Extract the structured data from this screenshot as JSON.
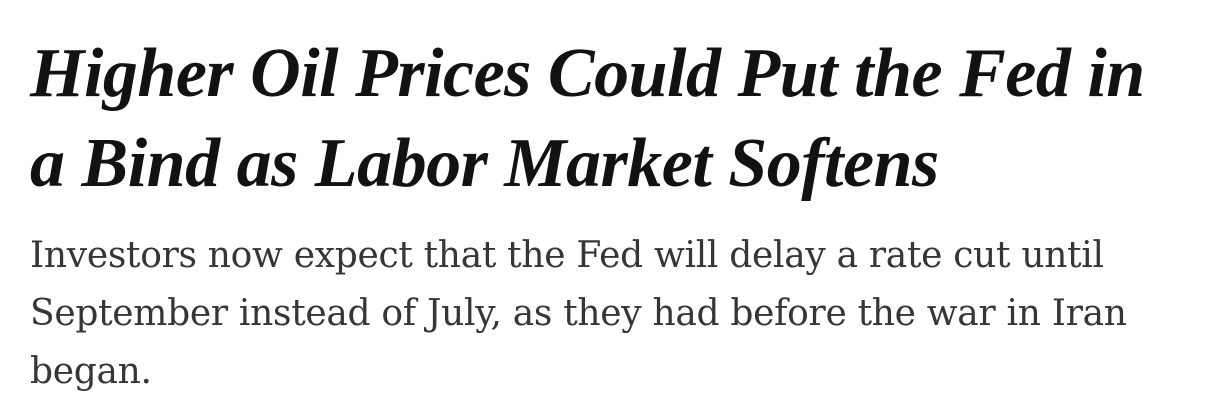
{
  "article": {
    "headline": {
      "text": "Higher Oil Prices Could Put the Fed in a Bind as Labor Market Softens",
      "lines": [
        "Higher Oil Prices Could Put the Fed in",
        "a Bind as Labor Market Softens"
      ]
    },
    "summary": {
      "text": "Investors now expect that the Fed will delay a rate cut until September instead of July, as they had before the war in Iran began.",
      "lines": [
        "Investors now expect that the Fed will delay a rate cut until",
        "September instead of July, as they had before the war in Iran",
        "began."
      ]
    },
    "colors": {
      "headline_text": "#121212",
      "summary_text": "#363636",
      "background": "#ffffff"
    }
  }
}
